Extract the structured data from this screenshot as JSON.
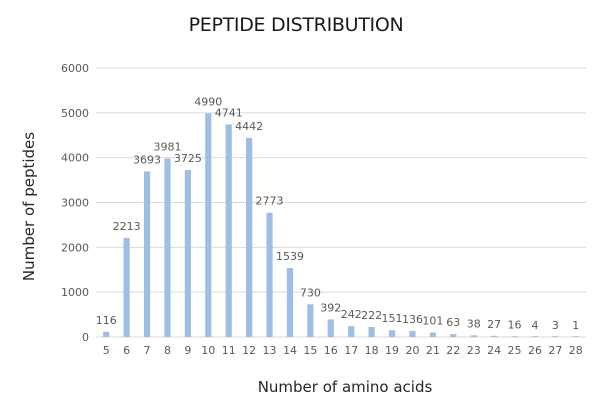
{
  "chart_data": {
    "type": "bar",
    "title": "PEPTIDE DISTRIBUTION",
    "xlabel": "Number of amino acids",
    "ylabel": "Number of peptides",
    "categories": [
      "5",
      "6",
      "7",
      "8",
      "9",
      "10",
      "11",
      "12",
      "13",
      "14",
      "15",
      "16",
      "17",
      "18",
      "19",
      "20",
      "21",
      "22",
      "23",
      "24",
      "25",
      "26",
      "27",
      "28"
    ],
    "values": [
      116,
      2213,
      3693,
      3981,
      3725,
      4990,
      4741,
      4442,
      2773,
      1539,
      730,
      392,
      242,
      222,
      151,
      136,
      101,
      63,
      38,
      27,
      16,
      4,
      3,
      1
    ],
    "ylim": [
      0,
      6000
    ],
    "yticks": [
      0,
      1000,
      2000,
      3000,
      4000,
      5000,
      6000
    ],
    "grid": true,
    "data_labels": true,
    "legend": "none",
    "bar_color": "#9DBFE6",
    "grid_color": "#D9D9D9"
  }
}
